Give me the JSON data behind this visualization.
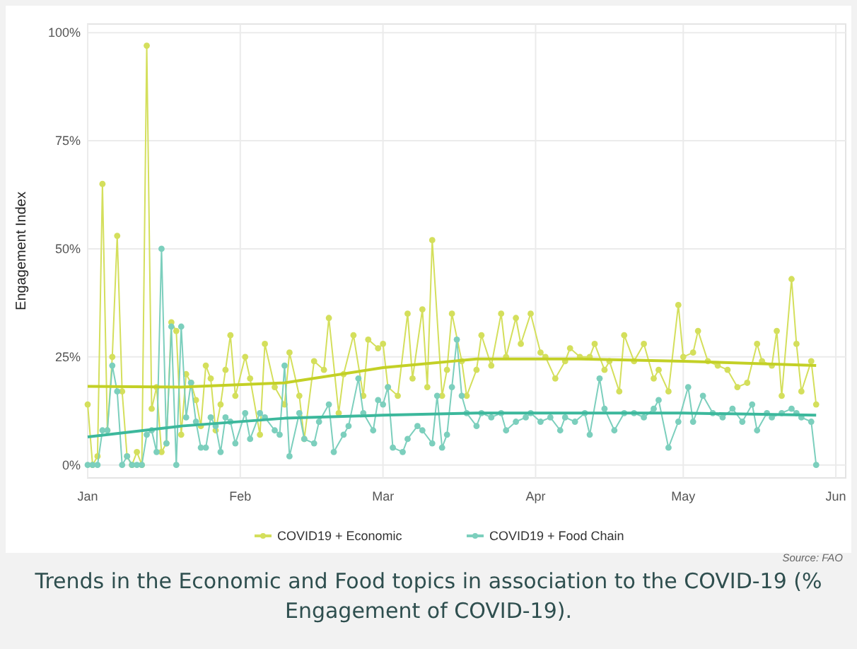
{
  "chart_data": {
    "type": "line",
    "title": "Trends in the Economic and Food topics in association to the COVID-19 (% Engagement of COVID-19).",
    "ylabel": "Engagement Index",
    "annotations": [
      "Source: FAO"
    ],
    "xlim": [
      "--01-01",
      "--06-03"
    ],
    "xticks": [
      {
        "value": "--01-01",
        "label": "Jan"
      },
      {
        "value": "--02-01",
        "label": "Feb"
      },
      {
        "value": "--03-01",
        "label": "Mar"
      },
      {
        "value": "--04-01",
        "label": "Apr"
      },
      {
        "value": "--05-01",
        "label": "May"
      },
      {
        "value": "--06-01",
        "label": "Jun"
      }
    ],
    "ylim": [
      -3,
      102
    ],
    "yticks": [
      {
        "value": 0,
        "label": "0%"
      },
      {
        "value": 25,
        "label": "25%"
      },
      {
        "value": 50,
        "label": "50%"
      },
      {
        "value": 75,
        "label": "75%"
      },
      {
        "value": 100,
        "label": "100%"
      }
    ],
    "grid": true,
    "legend": "bottom",
    "marker": "circle",
    "line_style": "solid",
    "series": [
      {
        "name": "COVID19 + Economic",
        "color": "#d4df5c",
        "x": [
          "--01-01",
          "--01-02",
          "--01-03",
          "--01-04",
          "--01-05",
          "--01-06",
          "--01-07",
          "--01-08",
          "--01-09",
          "--01-10",
          "--01-11",
          "--01-12",
          "--01-13",
          "--01-14",
          "--01-15",
          "--01-16",
          "--01-17",
          "--01-18",
          "--01-19",
          "--01-20",
          "--01-21",
          "--01-22",
          "--01-23",
          "--01-24",
          "--01-25",
          "--01-26",
          "--01-27",
          "--01-28",
          "--01-29",
          "--01-30",
          "--01-31",
          "--02-02",
          "--02-03",
          "--02-05",
          "--02-06",
          "--02-08",
          "--02-10",
          "--02-11",
          "--02-13",
          "--02-14",
          "--02-16",
          "--02-18",
          "--02-19",
          "--02-21",
          "--02-22",
          "--02-24",
          "--02-26",
          "--02-27",
          "--02-29",
          "--03-01",
          "--03-02",
          "--03-04",
          "--03-06",
          "--03-07",
          "--03-09",
          "--03-10",
          "--03-11",
          "--03-13",
          "--03-14",
          "--03-15",
          "--03-17",
          "--03-18",
          "--03-20",
          "--03-21",
          "--03-23",
          "--03-25",
          "--03-26",
          "--03-28",
          "--03-29",
          "--03-31",
          "--04-02",
          "--04-03",
          "--04-05",
          "--04-07",
          "--04-08",
          "--04-10",
          "--04-12",
          "--04-13",
          "--04-15",
          "--04-16",
          "--04-18",
          "--04-19",
          "--04-21",
          "--04-23",
          "--04-25",
          "--04-26",
          "--04-28",
          "--04-30",
          "--05-01",
          "--05-03",
          "--05-04",
          "--05-06",
          "--05-08",
          "--05-10",
          "--05-12",
          "--05-14",
          "--05-16",
          "--05-17",
          "--05-19",
          "--05-20",
          "--05-21",
          "--05-23",
          "--05-24",
          "--05-25",
          "--05-27",
          "--05-28"
        ],
        "values": [
          14,
          0,
          2,
          65,
          8,
          25,
          53,
          17,
          2,
          0,
          3,
          0,
          97,
          13,
          18,
          3,
          5,
          33,
          31,
          7,
          21,
          19,
          15,
          9,
          23,
          20,
          8,
          14,
          22,
          30,
          16,
          25,
          20,
          7,
          28,
          18,
          14,
          26,
          16,
          6,
          24,
          22,
          34,
          12,
          21,
          30,
          16,
          29,
          27,
          28,
          18,
          16,
          35,
          20,
          36,
          18,
          52,
          16,
          22,
          35,
          24,
          16,
          22,
          30,
          23,
          35,
          25,
          34,
          28,
          35,
          26,
          25,
          20,
          24,
          27,
          25,
          25,
          28,
          22,
          24,
          17,
          30,
          24,
          28,
          20,
          22,
          17,
          37,
          25,
          26,
          31,
          24,
          23,
          22,
          18,
          19,
          28,
          24,
          23,
          31,
          16,
          43,
          28,
          17,
          24,
          14
        ]
      },
      {
        "name": "COVID19 + Food Chain",
        "color": "#7ccfbd",
        "x": [
          "--01-01",
          "--01-02",
          "--01-03",
          "--01-04",
          "--01-05",
          "--01-06",
          "--01-07",
          "--01-08",
          "--01-09",
          "--01-10",
          "--01-11",
          "--01-12",
          "--01-13",
          "--01-14",
          "--01-15",
          "--01-16",
          "--01-17",
          "--01-18",
          "--01-19",
          "--01-20",
          "--01-21",
          "--01-22",
          "--01-23",
          "--01-24",
          "--01-25",
          "--01-26",
          "--01-27",
          "--01-28",
          "--01-29",
          "--01-30",
          "--01-31",
          "--02-02",
          "--02-03",
          "--02-05",
          "--02-06",
          "--02-08",
          "--02-09",
          "--02-10",
          "--02-11",
          "--02-13",
          "--02-14",
          "--02-16",
          "--02-17",
          "--02-19",
          "--02-20",
          "--02-22",
          "--02-23",
          "--02-25",
          "--02-26",
          "--02-28",
          "--02-29",
          "--03-01",
          "--03-02",
          "--03-03",
          "--03-05",
          "--03-06",
          "--03-08",
          "--03-09",
          "--03-11",
          "--03-12",
          "--03-13",
          "--03-14",
          "--03-15",
          "--03-16",
          "--03-17",
          "--03-18",
          "--03-20",
          "--03-21",
          "--03-23",
          "--03-25",
          "--03-26",
          "--03-28",
          "--03-30",
          "--03-31",
          "--04-02",
          "--04-04",
          "--04-06",
          "--04-07",
          "--04-09",
          "--04-11",
          "--04-12",
          "--04-14",
          "--04-15",
          "--04-17",
          "--04-19",
          "--04-21",
          "--04-23",
          "--04-25",
          "--04-26",
          "--04-28",
          "--04-30",
          "--05-02",
          "--05-03",
          "--05-05",
          "--05-07",
          "--05-09",
          "--05-11",
          "--05-13",
          "--05-15",
          "--05-16",
          "--05-18",
          "--05-19",
          "--05-21",
          "--05-23",
          "--05-24",
          "--05-25",
          "--05-27",
          "--05-28"
        ],
        "values": [
          0,
          0,
          0,
          8,
          8,
          23,
          17,
          0,
          2,
          0,
          0,
          0,
          7,
          8,
          3,
          50,
          5,
          32,
          0,
          32,
          11,
          19,
          10,
          4,
          4,
          11,
          9,
          3,
          11,
          10,
          5,
          12,
          6,
          12,
          11,
          8,
          7,
          23,
          2,
          12,
          6,
          5,
          10,
          14,
          3,
          7,
          9,
          20,
          12,
          8,
          15,
          14,
          18,
          4,
          3,
          6,
          9,
          8,
          5,
          16,
          4,
          7,
          18,
          29,
          16,
          12,
          9,
          12,
          11,
          12,
          8,
          10,
          11,
          12,
          10,
          11,
          8,
          11,
          10,
          12,
          7,
          20,
          13,
          8,
          12,
          12,
          11,
          13,
          15,
          4,
          10,
          18,
          10,
          16,
          12,
          11,
          13,
          10,
          14,
          8,
          12,
          11,
          12,
          13,
          12,
          11,
          10,
          0
        ]
      },
      {
        "type": "line",
        "marker": "none",
        "color": "#c3d026",
        "x": [
          "--01-01",
          "--01-20",
          "--02-10",
          "--03-01",
          "--03-20",
          "--04-10",
          "--05-01",
          "--05-28"
        ],
        "values": [
          18.2,
          18,
          19,
          22.5,
          24.5,
          24.5,
          24,
          23
        ]
      },
      {
        "type": "line",
        "marker": "none",
        "color": "#3cb89c",
        "x": [
          "--01-01",
          "--01-20",
          "--02-10",
          "--03-01",
          "--03-20",
          "--04-10",
          "--05-01",
          "--05-28"
        ],
        "values": [
          6.5,
          9,
          10.8,
          11.5,
          12,
          12,
          12,
          11.5
        ]
      }
    ]
  }
}
